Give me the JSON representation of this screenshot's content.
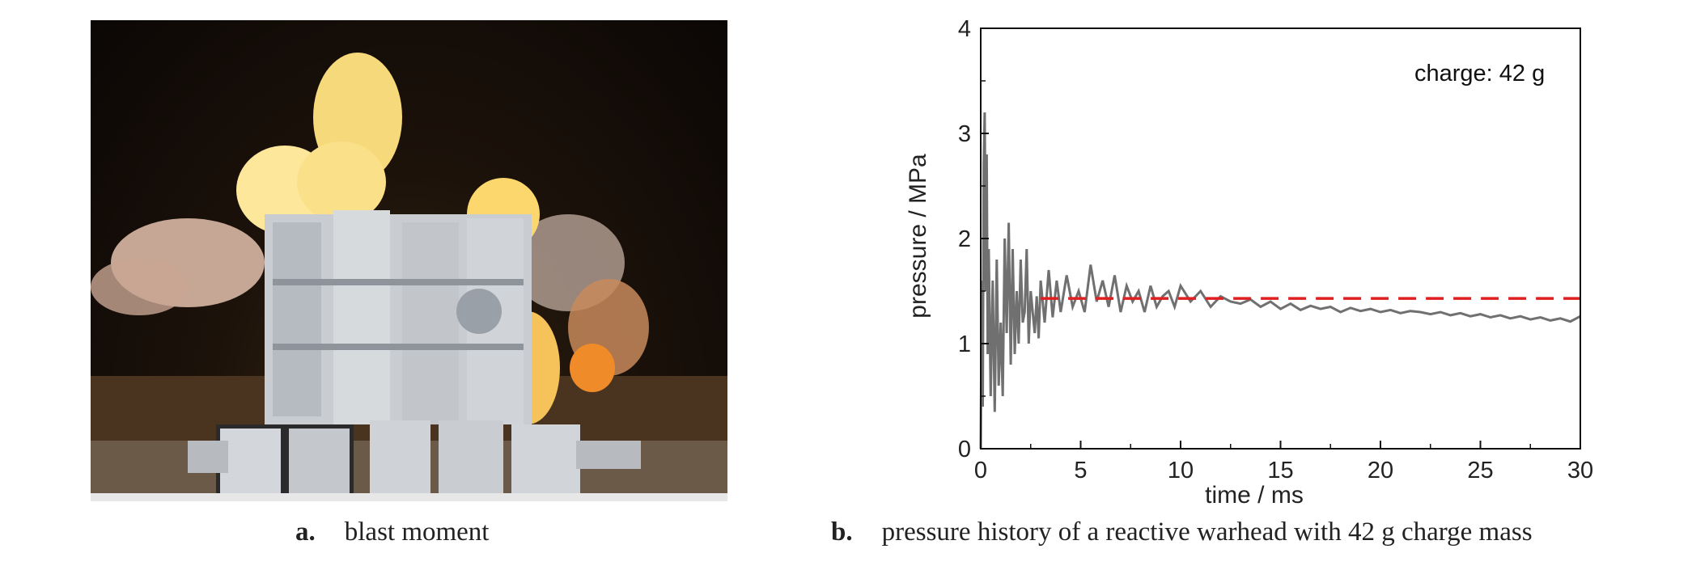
{
  "panels": {
    "a": {
      "label": "a.",
      "caption": "blast moment"
    },
    "b": {
      "label": "b.",
      "caption": "pressure history of a reactive warhead with 42 g charge mass"
    }
  },
  "chart_data": {
    "type": "line",
    "title": "",
    "xlabel": "time / ms",
    "ylabel": "pressure / MPa",
    "xlim": [
      0,
      30
    ],
    "ylim": [
      0,
      4
    ],
    "xticks": [
      0,
      5,
      10,
      15,
      20,
      25,
      30
    ],
    "yticks": [
      0,
      1,
      2,
      3,
      4
    ],
    "grid": false,
    "annotation": "charge: 42 g",
    "series": [
      {
        "color": "#707070",
        "style": "solid",
        "x": [
          0,
          0.05,
          0.1,
          0.15,
          0.2,
          0.25,
          0.3,
          0.35,
          0.4,
          0.5,
          0.6,
          0.7,
          0.8,
          0.9,
          1.0,
          1.1,
          1.2,
          1.3,
          1.4,
          1.5,
          1.6,
          1.7,
          1.8,
          1.9,
          2.0,
          2.1,
          2.2,
          2.3,
          2.4,
          2.5,
          2.6,
          2.7,
          2.8,
          2.9,
          3.0,
          3.2,
          3.4,
          3.6,
          3.8,
          4.0,
          4.3,
          4.6,
          4.9,
          5.2,
          5.5,
          5.8,
          6.1,
          6.4,
          6.7,
          7.0,
          7.3,
          7.6,
          7.9,
          8.2,
          8.5,
          8.8,
          9.1,
          9.4,
          9.7,
          10.0,
          10.5,
          11.0,
          11.5,
          12.0,
          12.5,
          13.0,
          13.5,
          14.0,
          14.5,
          15.0,
          15.5,
          16.0,
          16.5,
          17.0,
          17.5,
          18.0,
          18.5,
          19.0,
          19.5,
          20.0,
          20.5,
          21.0,
          21.5,
          22.0,
          22.5,
          23.0,
          23.5,
          24.0,
          24.5,
          25.0,
          25.5,
          26.0,
          26.5,
          27.0,
          27.5,
          28.0,
          28.5,
          29.0,
          29.5,
          30.0
        ],
        "y": [
          0.0,
          1.6,
          0.4,
          2.7,
          3.2,
          1.5,
          2.8,
          0.9,
          1.9,
          0.5,
          1.6,
          0.35,
          1.8,
          0.6,
          1.2,
          0.5,
          2.0,
          1.1,
          2.15,
          0.8,
          1.9,
          0.9,
          1.5,
          1.0,
          1.8,
          1.2,
          1.3,
          1.9,
          1.0,
          1.5,
          1.3,
          1.1,
          1.45,
          1.05,
          1.6,
          1.2,
          1.7,
          1.25,
          1.6,
          1.3,
          1.65,
          1.35,
          1.5,
          1.3,
          1.75,
          1.4,
          1.6,
          1.35,
          1.65,
          1.3,
          1.55,
          1.4,
          1.5,
          1.3,
          1.55,
          1.35,
          1.45,
          1.5,
          1.35,
          1.55,
          1.4,
          1.5,
          1.35,
          1.45,
          1.4,
          1.38,
          1.42,
          1.35,
          1.4,
          1.33,
          1.38,
          1.32,
          1.36,
          1.33,
          1.35,
          1.3,
          1.34,
          1.31,
          1.33,
          1.3,
          1.32,
          1.29,
          1.31,
          1.3,
          1.28,
          1.3,
          1.27,
          1.29,
          1.26,
          1.28,
          1.25,
          1.27,
          1.24,
          1.26,
          1.23,
          1.25,
          1.22,
          1.24,
          1.21,
          1.26
        ]
      },
      {
        "color": "#e02020",
        "style": "dashed",
        "x": [
          3,
          30
        ],
        "y": [
          1.43,
          1.43
        ]
      }
    ]
  }
}
